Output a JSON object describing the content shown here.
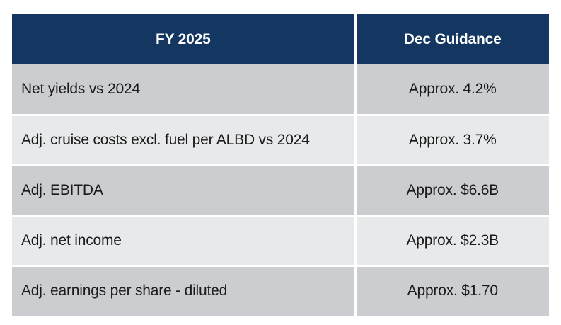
{
  "chart_data": {
    "type": "table",
    "columns": [
      "FY 2025",
      "Dec Guidance"
    ],
    "rows": [
      [
        "Net yields vs 2024",
        "Approx. 4.2%"
      ],
      [
        "Adj. cruise costs excl. fuel per ALBD vs 2024",
        "Approx. 3.7%"
      ],
      [
        "Adj. EBITDA",
        "Approx. $6.6B"
      ],
      [
        "Adj. net income",
        "Approx. $2.3B"
      ],
      [
        "Adj. earnings per share - diluted",
        "Approx. $1.70"
      ]
    ],
    "title": "",
    "layout_hints": {
      "header_alignment": "center",
      "label_alignment": "left",
      "value_alignment": "center",
      "row_striping": "odd rows darker gray, even rows lighter gray"
    }
  },
  "colors": {
    "header_bg": "#133761",
    "header_text": "#ffffff",
    "row_odd_bg": "#cccdd1",
    "row_even_bg": "#e8e9eb",
    "body_text": "#1a1a1a",
    "divider": "#ffffff",
    "page_bg": "#ffffff"
  }
}
